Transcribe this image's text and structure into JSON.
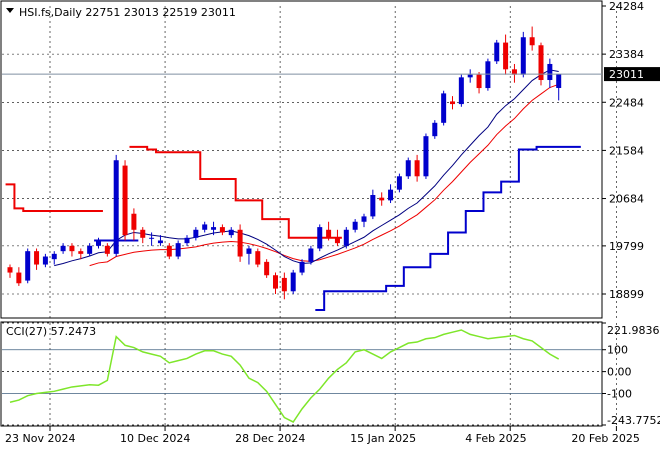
{
  "header": {
    "symbol_line": "HSI.fs,Daily  22751 23013 22519 23011"
  },
  "cci_panel": {
    "label": "CCI(27) 57.2473",
    "scale_max": "221.9836",
    "scale_min": "-243.7752"
  },
  "colors": {
    "bull": "#0000cc",
    "bear": "#ee0000",
    "ma_fast": "#000080",
    "ma_slow": "#ee0000",
    "stop_high": "#ee0000",
    "stop_low": "#0000cc",
    "cci": "#7ee62a",
    "grid": "#000000"
  },
  "chart_data": [
    {
      "type": "candlestick",
      "title": "HSI.fs,Daily",
      "ohlc_latest": {
        "open": 22751,
        "high": 23013,
        "low": 22519,
        "close": 23011
      },
      "last_price": "23011",
      "y_ticks": [
        "24284",
        "23384",
        "22484",
        "21584",
        "20684",
        "19799",
        "18899"
      ],
      "ylim": [
        18600,
        24284
      ],
      "x_tick_labels": [
        "23 Nov 2024",
        "10 Dec 2024",
        "28 Dec 2024",
        "15 Jan 2025",
        "4 Feb 2025",
        "20 Feb 2025"
      ],
      "x_tick_index": [
        0,
        13,
        26,
        39,
        52,
        64
      ],
      "candles": [
        [
          19400,
          19450,
          19200,
          19300
        ],
        [
          19300,
          19400,
          19050,
          19100
        ],
        [
          19150,
          19750,
          19100,
          19700
        ],
        [
          19700,
          19750,
          19350,
          19450
        ],
        [
          19450,
          19650,
          19400,
          19600
        ],
        [
          19550,
          19700,
          19450,
          19650
        ],
        [
          19700,
          19850,
          19650,
          19800
        ],
        [
          19800,
          19850,
          19600,
          19700
        ],
        [
          19700,
          19750,
          19550,
          19650
        ],
        [
          19650,
          19850,
          19600,
          19800
        ],
        [
          19800,
          19950,
          19750,
          19900
        ],
        [
          19800,
          19850,
          19600,
          19650
        ],
        [
          19650,
          21500,
          19600,
          21400
        ],
        [
          21300,
          21400,
          19900,
          20000
        ],
        [
          20400,
          20500,
          19900,
          20100
        ],
        [
          20100,
          20150,
          19850,
          19950
        ],
        [
          19950,
          20050,
          19800,
          19950
        ],
        [
          19850,
          20000,
          19800,
          19900
        ],
        [
          19800,
          19850,
          19550,
          19600
        ],
        [
          19600,
          19900,
          19550,
          19850
        ],
        [
          19850,
          20000,
          19800,
          19950
        ],
        [
          19950,
          20150,
          19900,
          20100
        ],
        [
          20100,
          20250,
          20050,
          20200
        ],
        [
          20100,
          20250,
          20000,
          20150
        ],
        [
          20150,
          20200,
          20000,
          20050
        ],
        [
          20000,
          20150,
          19950,
          20100
        ],
        [
          20100,
          20200,
          19500,
          19600
        ],
        [
          19650,
          19800,
          19450,
          19750
        ],
        [
          19700,
          19750,
          19400,
          19450
        ],
        [
          19500,
          19550,
          19200,
          19250
        ],
        [
          19250,
          19300,
          18900,
          19000
        ],
        [
          19200,
          19300,
          18800,
          18950
        ],
        [
          18950,
          19350,
          18900,
          19300
        ],
        [
          19300,
          19550,
          19250,
          19500
        ],
        [
          19500,
          19800,
          19450,
          19750
        ],
        [
          19750,
          20200,
          19700,
          20150
        ],
        [
          20100,
          20250,
          19900,
          19950
        ],
        [
          19950,
          20100,
          19800,
          19850
        ],
        [
          19800,
          20150,
          19750,
          20100
        ],
        [
          20100,
          20300,
          20050,
          20250
        ],
        [
          20250,
          20400,
          20150,
          20350
        ],
        [
          20350,
          20850,
          20300,
          20750
        ],
        [
          20700,
          20800,
          20550,
          20650
        ],
        [
          20650,
          20950,
          20600,
          20850
        ],
        [
          20850,
          21150,
          20800,
          21100
        ],
        [
          21100,
          21450,
          21050,
          21400
        ],
        [
          21400,
          21500,
          21000,
          21100
        ],
        [
          21100,
          21900,
          21050,
          21850
        ],
        [
          21850,
          22150,
          21800,
          22100
        ],
        [
          22100,
          22700,
          22050,
          22650
        ],
        [
          22500,
          22600,
          22350,
          22450
        ],
        [
          22450,
          23000,
          22400,
          22950
        ],
        [
          22950,
          23100,
          22850,
          23000
        ],
        [
          23000,
          23050,
          22650,
          22750
        ],
        [
          22750,
          23300,
          22700,
          23250
        ],
        [
          23250,
          23650,
          23200,
          23600
        ],
        [
          23600,
          23750,
          23000,
          23100
        ],
        [
          23100,
          23200,
          22850,
          23000
        ],
        [
          23000,
          23800,
          22950,
          23700
        ],
        [
          23700,
          23900,
          23450,
          23550
        ],
        [
          23550,
          23600,
          22800,
          22900
        ],
        [
          22900,
          23300,
          22750,
          23200
        ],
        [
          22751,
          23013,
          22519,
          23011
        ]
      ],
      "ma_fast": [
        null,
        null,
        null,
        null,
        null,
        19430,
        19470,
        19520,
        19560,
        19610,
        19670,
        19690,
        19900,
        20000,
        20050,
        20030,
        20000,
        19980,
        19950,
        19930,
        19930,
        19960,
        20000,
        20040,
        20060,
        20080,
        20040,
        19990,
        19920,
        19830,
        19720,
        19600,
        19520,
        19470,
        19480,
        19570,
        19650,
        19720,
        19800,
        19880,
        19960,
        20080,
        20180,
        20280,
        20380,
        20500,
        20600,
        20760,
        20920,
        21120,
        21300,
        21500,
        21680,
        21860,
        22020,
        22260,
        22420,
        22550,
        22720,
        22890,
        23000,
        23090,
        23060
      ],
      "ma_slow": [
        null,
        null,
        null,
        null,
        null,
        null,
        null,
        null,
        null,
        19430,
        19480,
        19500,
        19600,
        19640,
        19680,
        19700,
        19720,
        19730,
        19730,
        19740,
        19760,
        19780,
        19820,
        19850,
        19870,
        19880,
        19870,
        19840,
        19800,
        19750,
        19690,
        19620,
        19560,
        19520,
        19510,
        19540,
        19590,
        19640,
        19700,
        19760,
        19830,
        19920,
        20000,
        20080,
        20170,
        20280,
        20380,
        20520,
        20660,
        20840,
        21000,
        21180,
        21360,
        21520,
        21680,
        21880,
        22040,
        22180,
        22360,
        22520,
        22640,
        22760,
        22820
      ],
      "stop_high": [
        [
          0,
          20950
        ],
        [
          1,
          20500
        ],
        [
          2,
          20450
        ],
        [
          3,
          20450
        ],
        [
          4,
          20450
        ],
        [
          5,
          20450
        ],
        [
          6,
          20450
        ],
        [
          7,
          20450
        ],
        [
          8,
          20450
        ],
        [
          9,
          20450
        ],
        [
          10,
          20450
        ],
        [
          null,
          null
        ],
        [
          14,
          21650
        ],
        [
          15,
          21650
        ],
        [
          16,
          21600
        ],
        [
          17,
          21550
        ],
        [
          18,
          21550
        ],
        [
          19,
          21550
        ],
        [
          20,
          21550
        ],
        [
          21,
          21550
        ],
        [
          22,
          21050
        ],
        [
          23,
          21050
        ],
        [
          24,
          21050
        ],
        [
          25,
          21050
        ],
        [
          26,
          20650
        ],
        [
          27,
          20650
        ],
        [
          28,
          20650
        ],
        [
          29,
          20300
        ],
        [
          30,
          20300
        ],
        [
          31,
          20300
        ],
        [
          32,
          19950
        ],
        [
          33,
          19950
        ],
        [
          34,
          19950
        ],
        [
          35,
          19950
        ],
        [
          36,
          19950
        ],
        [
          37,
          19950
        ]
      ],
      "stop_low": [
        [
          10,
          19900
        ],
        [
          11,
          19900
        ],
        [
          12,
          19900
        ],
        [
          13,
          19900
        ],
        [
          14,
          19900
        ],
        [
          null,
          null
        ],
        [
          35,
          18600
        ],
        [
          36,
          18950
        ],
        [
          37,
          18950
        ],
        [
          38,
          18950
        ],
        [
          39,
          18950
        ],
        [
          40,
          18950
        ],
        [
          41,
          18950
        ],
        [
          42,
          18950
        ],
        [
          43,
          19050
        ],
        [
          44,
          19050
        ],
        [
          45,
          19400
        ],
        [
          46,
          19400
        ],
        [
          47,
          19400
        ],
        [
          48,
          19650
        ],
        [
          49,
          19650
        ],
        [
          50,
          20050
        ],
        [
          51,
          20050
        ],
        [
          52,
          20450
        ],
        [
          53,
          20450
        ],
        [
          54,
          20800
        ],
        [
          55,
          20800
        ],
        [
          56,
          21000
        ],
        [
          57,
          21000
        ],
        [
          58,
          21600
        ],
        [
          59,
          21600
        ],
        [
          60,
          21650
        ],
        [
          61,
          21650
        ],
        [
          62,
          21650
        ],
        [
          63,
          21650
        ],
        [
          64,
          21650
        ]
      ]
    },
    {
      "type": "line",
      "title": "CCI(27) 57.2473",
      "y_ticks": [
        "221.9836",
        "100",
        "0.00",
        "-100",
        "-243.7752"
      ],
      "ylim": [
        -243.7752,
        221.9836
      ],
      "series": [
        {
          "name": "CCI(27)",
          "values": [
            -140,
            -130,
            -110,
            -100,
            -95,
            -90,
            -80,
            -70,
            -65,
            -60,
            -62,
            -40,
            160,
            120,
            110,
            90,
            80,
            70,
            40,
            50,
            60,
            80,
            95,
            95,
            80,
            70,
            30,
            -30,
            -50,
            -90,
            -150,
            -210,
            -230,
            -170,
            -120,
            -80,
            -30,
            10,
            40,
            90,
            100,
            80,
            60,
            90,
            110,
            130,
            135,
            150,
            155,
            170,
            180,
            190,
            170,
            160,
            150,
            155,
            160,
            165,
            150,
            140,
            110,
            80,
            57.2
          ]
        }
      ]
    }
  ]
}
